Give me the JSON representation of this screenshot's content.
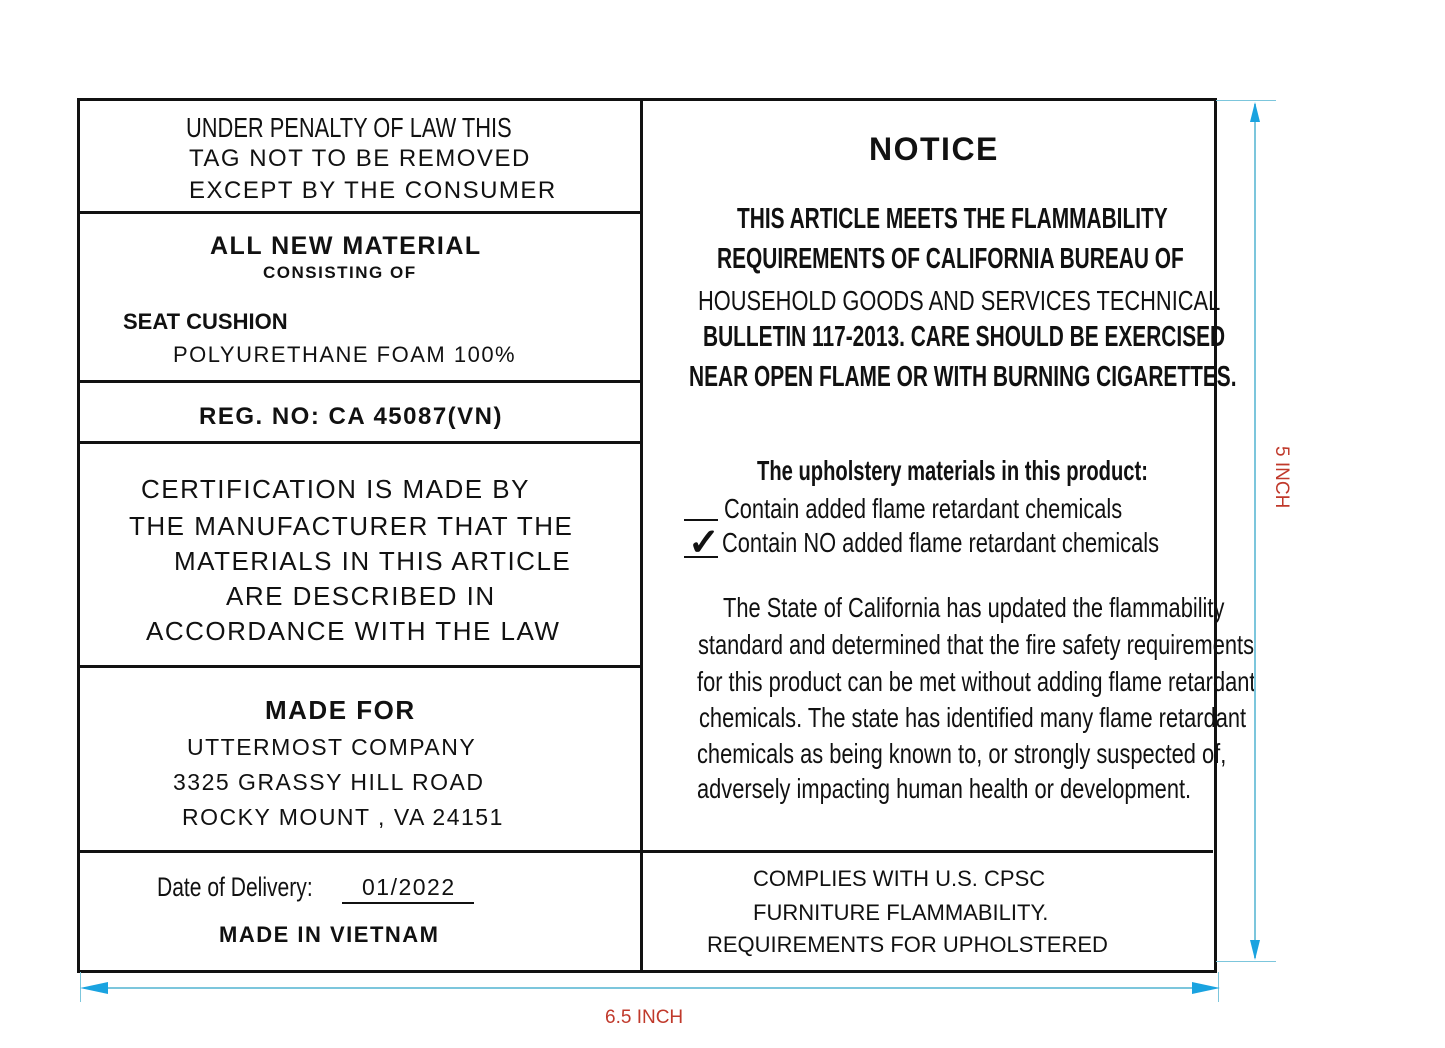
{
  "left": {
    "penalty": [
      "UNDER PENALTY OF LAW THIS",
      "TAG NOT TO BE REMOVED",
      "EXCEPT BY THE CONSUMER"
    ],
    "material_title": "ALL NEW MATERIAL",
    "consisting": "CONSISTING OF",
    "seat_label": "SEAT CUSHION",
    "seat_value": "POLYURETHANE FOAM 100%",
    "reg_no": "REG. NO:  CA 45087(VN)",
    "certification": [
      "CERTIFICATION IS MADE BY",
      "THE MANUFACTURER THAT THE",
      "MATERIALS IN THIS ARTICLE",
      "ARE DESCRIBED IN",
      "ACCORDANCE WITH THE LAW"
    ],
    "made_for_title": "MADE FOR",
    "made_for": [
      "UTTERMOST COMPANY",
      "3325 GRASSY HILL ROAD",
      "ROCKY MOUNT , VA 24151"
    ],
    "delivery_label": "Date of Delivery:",
    "delivery_value": "01/2022",
    "made_in": "MADE IN VIETNAM"
  },
  "right": {
    "notice_title": "NOTICE",
    "notice": [
      "THIS ARTICLE MEETS THE FLAMMABILITY",
      "REQUIREMENTS OF CALIFORNIA BUREAU OF",
      "HOUSEHOLD GOODS AND SERVICES TECHNICAL",
      "BULLETIN 117-2013. CARE SHOULD BE EXERCISED",
      "NEAR OPEN FLAME OR WITH BURNING CIGARETTES."
    ],
    "materials_heading": "The upholstery materials in this product:",
    "options": [
      {
        "label": "Contain added flame retardant chemicals",
        "checked": false
      },
      {
        "label": "Contain NO added flame retardant chemicals",
        "checked": true
      }
    ],
    "check_mark": "✓",
    "state": [
      "The State of California has updated the flammability",
      "standard and determined that the fire safety requirements",
      "for this product can be met without adding flame retardant",
      "chemicals. The state has identified many flame retardant",
      "chemicals as being known to, or strongly suspected of,",
      "adversely impacting human health or development."
    ],
    "complies": [
      "COMPLIES WITH U.S. CPSC",
      "FURNITURE  FLAMMABILITY.",
      "REQUIREMENTS FOR UPHOLSTERED"
    ]
  },
  "dimensions": {
    "width": "6.5 INCH",
    "height": "5 INCH",
    "line_color": "#1aa3e0",
    "label_color": "#c0392b"
  }
}
